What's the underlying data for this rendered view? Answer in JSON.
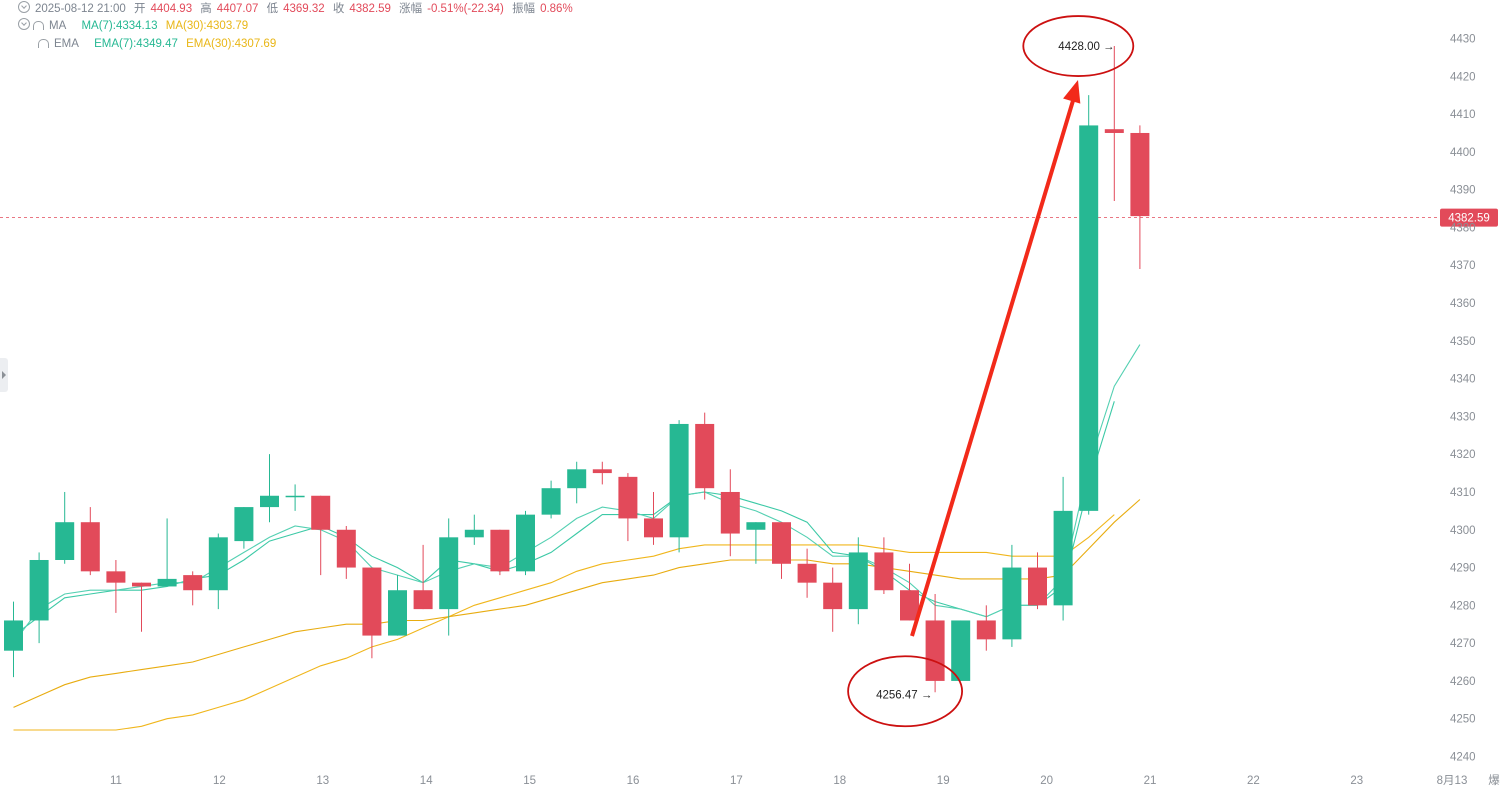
{
  "legend": {
    "ohlc": {
      "datetime": "2025-08-12 21:00",
      "open_label": "开",
      "open": "4404.93",
      "high_label": "高",
      "high": "4407.07",
      "low_label": "低",
      "low": "4369.32",
      "close_label": "收",
      "close": "4382.59",
      "change_label": "涨幅",
      "change": "-0.51%(-22.34)",
      "amplitude_label": "振幅",
      "amplitude": "0.86%"
    },
    "ma": {
      "label": "MA",
      "ma7": "MA(7):4334.13",
      "ma30": "MA(30):4303.79"
    },
    "ema": {
      "label": "EMA",
      "ema7": "EMA(7):4349.47",
      "ema30": "EMA(30):4307.69"
    }
  },
  "colors": {
    "up": "#26b893",
    "down": "#e24a5a",
    "ma7": "#3cc9a6",
    "ma30": "#f0b61c",
    "ema7": "#54d0b2",
    "ema30": "#e8ac10",
    "annotation": "#f22a1a",
    "circle": "#cc1010"
  },
  "chart_data": {
    "type": "candlestick",
    "y_axis": {
      "ticks": [
        4240,
        4250,
        4260,
        4270,
        4280,
        4290,
        4300,
        4310,
        4320,
        4330,
        4340,
        4350,
        4360,
        4370,
        4380,
        4390,
        4400,
        4410,
        4420,
        4430
      ],
      "ylim": [
        4236,
        4436
      ]
    },
    "x_axis": {
      "labels": [
        "11",
        "12",
        "13",
        "14",
        "15",
        "16",
        "17",
        "18",
        "19",
        "20",
        "21",
        "22",
        "23",
        "8月13"
      ],
      "truncated_right_label": "爆"
    },
    "current_price": "4382.59",
    "candles": [
      {
        "o": 4268,
        "h": 4281,
        "l": 4261,
        "c": 4276
      },
      {
        "o": 4276,
        "h": 4294,
        "l": 4270,
        "c": 4292
      },
      {
        "o": 4292,
        "h": 4310,
        "l": 4291,
        "c": 4302
      },
      {
        "o": 4302,
        "h": 4306,
        "l": 4288,
        "c": 4289
      },
      {
        "o": 4289,
        "h": 4292,
        "l": 4278,
        "c": 4286
      },
      {
        "o": 4286,
        "h": 4286,
        "l": 4273,
        "c": 4285
      },
      {
        "o": 4285,
        "h": 4303,
        "l": 4285,
        "c": 4287
      },
      {
        "o": 4288,
        "h": 4289,
        "l": 4280,
        "c": 4284
      },
      {
        "o": 4284,
        "h": 4299,
        "l": 4279,
        "c": 4298
      },
      {
        "o": 4297,
        "h": 4306,
        "l": 4295,
        "c": 4306
      },
      {
        "o": 4306,
        "h": 4320,
        "l": 4302,
        "c": 4309
      },
      {
        "o": 4309,
        "h": 4312,
        "l": 4305,
        "c": 4309
      },
      {
        "o": 4309,
        "h": 4309,
        "l": 4288,
        "c": 4300
      },
      {
        "o": 4300,
        "h": 4301,
        "l": 4287,
        "c": 4290
      },
      {
        "o": 4290,
        "h": 4290,
        "l": 4266,
        "c": 4272
      },
      {
        "o": 4272,
        "h": 4288,
        "l": 4272,
        "c": 4284
      },
      {
        "o": 4284,
        "h": 4296,
        "l": 4279,
        "c": 4279
      },
      {
        "o": 4279,
        "h": 4303,
        "l": 4272,
        "c": 4298
      },
      {
        "o": 4298,
        "h": 4304,
        "l": 4296,
        "c": 4300
      },
      {
        "o": 4300,
        "h": 4300,
        "l": 4288,
        "c": 4289
      },
      {
        "o": 4289,
        "h": 4305,
        "l": 4288,
        "c": 4304
      },
      {
        "o": 4304,
        "h": 4313,
        "l": 4303,
        "c": 4311
      },
      {
        "o": 4311,
        "h": 4318,
        "l": 4307,
        "c": 4316
      },
      {
        "o": 4316,
        "h": 4318,
        "l": 4312,
        "c": 4315
      },
      {
        "o": 4314,
        "h": 4315,
        "l": 4297,
        "c": 4303
      },
      {
        "o": 4303,
        "h": 4310,
        "l": 4296,
        "c": 4298
      },
      {
        "o": 4298,
        "h": 4329,
        "l": 4294,
        "c": 4328
      },
      {
        "o": 4328,
        "h": 4331,
        "l": 4308,
        "c": 4311
      },
      {
        "o": 4310,
        "h": 4316,
        "l": 4293,
        "c": 4299
      },
      {
        "o": 4300,
        "h": 4302,
        "l": 4291,
        "c": 4302
      },
      {
        "o": 4302,
        "h": 4302,
        "l": 4287,
        "c": 4291
      },
      {
        "o": 4291,
        "h": 4295,
        "l": 4282,
        "c": 4286
      },
      {
        "o": 4286,
        "h": 4290,
        "l": 4273,
        "c": 4279
      },
      {
        "o": 4279,
        "h": 4298,
        "l": 4275,
        "c": 4294
      },
      {
        "o": 4294,
        "h": 4298,
        "l": 4283,
        "c": 4284
      },
      {
        "o": 4284,
        "h": 4291,
        "l": 4276,
        "c": 4276
      },
      {
        "o": 4276,
        "h": 4283,
        "l": 4257,
        "c": 4260
      },
      {
        "o": 4260,
        "h": 4276,
        "l": 4260,
        "c": 4276
      },
      {
        "o": 4276,
        "h": 4280,
        "l": 4268,
        "c": 4271
      },
      {
        "o": 4271,
        "h": 4296,
        "l": 4269,
        "c": 4290
      },
      {
        "o": 4290,
        "h": 4294,
        "l": 4279,
        "c": 4280
      },
      {
        "o": 4280,
        "h": 4314,
        "l": 4276,
        "c": 4305
      },
      {
        "o": 4305,
        "h": 4415,
        "l": 4304,
        "c": 4407
      },
      {
        "o": 4406,
        "h": 4428,
        "l": 4387,
        "c": 4405
      },
      {
        "o": 4405,
        "h": 4407,
        "l": 4369,
        "c": 4383
      }
    ],
    "ma7": [
      [
        0,
        4272
      ],
      [
        1,
        4277
      ],
      [
        2,
        4282
      ],
      [
        3,
        4283
      ],
      [
        4,
        4284
      ],
      [
        5,
        4284
      ],
      [
        6,
        4285
      ],
      [
        7,
        4287
      ],
      [
        8,
        4288
      ],
      [
        9,
        4292
      ],
      [
        10,
        4297
      ],
      [
        11,
        4299
      ],
      [
        12,
        4301
      ],
      [
        13,
        4298
      ],
      [
        14,
        4293
      ],
      [
        15,
        4290
      ],
      [
        16,
        4286
      ],
      [
        17,
        4292
      ],
      [
        18,
        4291
      ],
      [
        19,
        4289
      ],
      [
        20,
        4291
      ],
      [
        21,
        4294
      ],
      [
        22,
        4299
      ],
      [
        23,
        4304
      ],
      [
        24,
        4304
      ],
      [
        25,
        4304
      ],
      [
        26,
        4309
      ],
      [
        27,
        4310
      ],
      [
        28,
        4309
      ],
      [
        29,
        4307
      ],
      [
        30,
        4305
      ],
      [
        31,
        4302
      ],
      [
        32,
        4294
      ],
      [
        33,
        4293
      ],
      [
        34,
        4289
      ],
      [
        35,
        4284
      ],
      [
        36,
        4281
      ],
      [
        37,
        4279
      ],
      [
        38,
        4277
      ],
      [
        39,
        4280
      ],
      [
        40,
        4280
      ],
      [
        41,
        4285
      ],
      [
        42,
        4312
      ],
      [
        43,
        4334
      ]
    ],
    "ema7": [
      [
        0,
        4270
      ],
      [
        1,
        4279
      ],
      [
        2,
        4283
      ],
      [
        3,
        4284
      ],
      [
        4,
        4284
      ],
      [
        5,
        4285
      ],
      [
        6,
        4286
      ],
      [
        7,
        4286
      ],
      [
        8,
        4290
      ],
      [
        9,
        4294
      ],
      [
        10,
        4298
      ],
      [
        11,
        4301
      ],
      [
        12,
        4300
      ],
      [
        13,
        4297
      ],
      [
        14,
        4290
      ],
      [
        15,
        4288
      ],
      [
        16,
        4286
      ],
      [
        17,
        4289
      ],
      [
        18,
        4291
      ],
      [
        19,
        4290
      ],
      [
        20,
        4294
      ],
      [
        21,
        4298
      ],
      [
        22,
        4303
      ],
      [
        23,
        4306
      ],
      [
        24,
        4305
      ],
      [
        25,
        4303
      ],
      [
        26,
        4309
      ],
      [
        27,
        4310
      ],
      [
        28,
        4307
      ],
      [
        29,
        4305
      ],
      [
        30,
        4302
      ],
      [
        31,
        4298
      ],
      [
        32,
        4293
      ],
      [
        33,
        4293
      ],
      [
        34,
        4290
      ],
      [
        35,
        4286
      ],
      [
        36,
        4280
      ],
      [
        37,
        4279
      ],
      [
        38,
        4277
      ],
      [
        39,
        4280
      ],
      [
        40,
        4280
      ],
      [
        41,
        4287
      ],
      [
        42,
        4317
      ],
      [
        43,
        4338
      ],
      [
        44,
        4349
      ]
    ],
    "ma30": [
      [
        0,
        4247
      ],
      [
        1,
        4247
      ],
      [
        2,
        4247
      ],
      [
        3,
        4247
      ],
      [
        4,
        4247
      ],
      [
        5,
        4248
      ],
      [
        6,
        4250
      ],
      [
        7,
        4251
      ],
      [
        8,
        4253
      ],
      [
        9,
        4255
      ],
      [
        10,
        4258
      ],
      [
        11,
        4261
      ],
      [
        12,
        4264
      ],
      [
        13,
        4266
      ],
      [
        14,
        4269
      ],
      [
        15,
        4271
      ],
      [
        16,
        4274
      ],
      [
        17,
        4277
      ],
      [
        18,
        4280
      ],
      [
        19,
        4282
      ],
      [
        20,
        4284
      ],
      [
        21,
        4286
      ],
      [
        22,
        4289
      ],
      [
        23,
        4291
      ],
      [
        24,
        4292
      ],
      [
        25,
        4293
      ],
      [
        26,
        4295
      ],
      [
        27,
        4296
      ],
      [
        28,
        4296
      ],
      [
        29,
        4296
      ],
      [
        30,
        4296
      ],
      [
        31,
        4296
      ],
      [
        32,
        4296
      ],
      [
        33,
        4296
      ],
      [
        34,
        4295
      ],
      [
        35,
        4294
      ],
      [
        36,
        4294
      ],
      [
        37,
        4294
      ],
      [
        38,
        4294
      ],
      [
        39,
        4293
      ],
      [
        40,
        4293
      ],
      [
        41,
        4293
      ],
      [
        42,
        4298
      ],
      [
        43,
        4304
      ]
    ],
    "ema30": [
      [
        0,
        4253
      ],
      [
        1,
        4256
      ],
      [
        2,
        4259
      ],
      [
        3,
        4261
      ],
      [
        4,
        4262
      ],
      [
        5,
        4263
      ],
      [
        6,
        4264
      ],
      [
        7,
        4265
      ],
      [
        8,
        4267
      ],
      [
        9,
        4269
      ],
      [
        10,
        4271
      ],
      [
        11,
        4273
      ],
      [
        12,
        4274
      ],
      [
        13,
        4275
      ],
      [
        14,
        4275
      ],
      [
        15,
        4276
      ],
      [
        16,
        4276
      ],
      [
        17,
        4277
      ],
      [
        18,
        4278
      ],
      [
        19,
        4279
      ],
      [
        20,
        4280
      ],
      [
        21,
        4282
      ],
      [
        22,
        4284
      ],
      [
        23,
        4286
      ],
      [
        24,
        4287
      ],
      [
        25,
        4288
      ],
      [
        26,
        4290
      ],
      [
        27,
        4291
      ],
      [
        28,
        4292
      ],
      [
        29,
        4292
      ],
      [
        30,
        4292
      ],
      [
        31,
        4292
      ],
      [
        32,
        4291
      ],
      [
        33,
        4291
      ],
      [
        34,
        4290
      ],
      [
        35,
        4289
      ],
      [
        36,
        4288
      ],
      [
        37,
        4287
      ],
      [
        38,
        4287
      ],
      [
        39,
        4287
      ],
      [
        40,
        4287
      ],
      [
        41,
        4288
      ],
      [
        42,
        4295
      ],
      [
        43,
        4302
      ],
      [
        44,
        4308
      ]
    ],
    "annotations": {
      "high": {
        "text": "4428.00 →",
        "candle": 43,
        "value": 4428
      },
      "low": {
        "text": "4256.47 →",
        "candle": 36,
        "value": 4256.47
      }
    }
  }
}
